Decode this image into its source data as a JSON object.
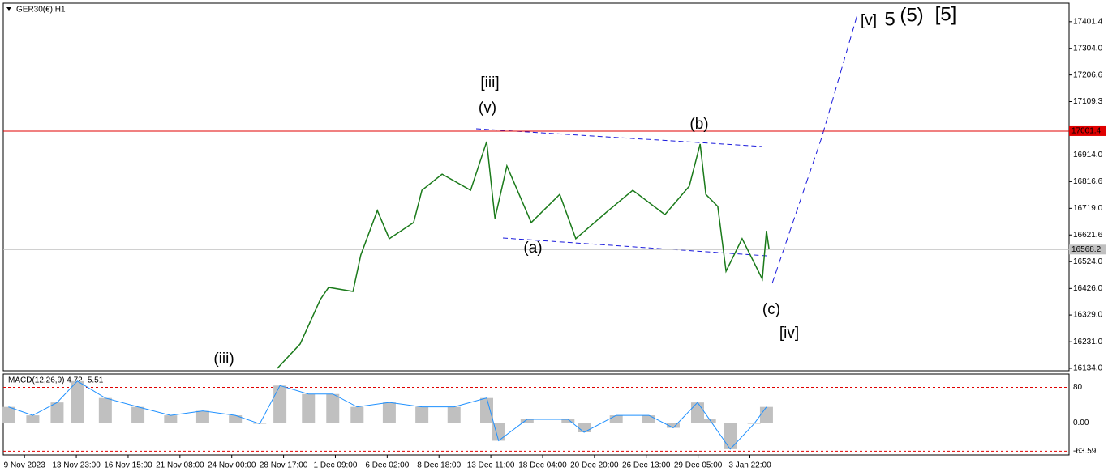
{
  "chart_data": {
    "type": "line",
    "symbol": "GER30(€),H1",
    "indicator": "MACD(12,26,9) 4.72 -5.51",
    "categories": [
      "9 Nov 2023",
      "13 Nov 23:00",
      "16 Nov 15:00",
      "21 Nov 08:00",
      "24 Nov 00:00",
      "28 Nov 17:00",
      "1 Dec 09:00",
      "6 Dec 02:00",
      "8 Dec 18:00",
      "13 Dec 11:00",
      "18 Dec 04:00",
      "20 Dec 20:00",
      "26 Dec 13:00",
      "29 Dec 05:00",
      "3 Jan 22:00"
    ],
    "xlim": [
      -0.41,
      20.16
    ],
    "ylim": [
      16125,
      17469
    ],
    "yticks": [
      {
        "value": 17401.4,
        "label": "17401.4"
      },
      {
        "value": 17304,
        "label": "17304.0"
      },
      {
        "value": 17206.6,
        "label": "17206.6"
      },
      {
        "value": 17109.3,
        "label": "17109.3"
      },
      {
        "value": 16914,
        "label": "16914.0"
      },
      {
        "value": 16816.6,
        "label": "16816.6"
      },
      {
        "value": 16719,
        "label": "16719.0"
      },
      {
        "value": 16621.6,
        "label": "16621.6"
      },
      {
        "value": 16524,
        "label": "16524.0"
      },
      {
        "value": 16426,
        "label": "16426.0"
      },
      {
        "value": 16329,
        "label": "16329.0"
      },
      {
        "value": 16231,
        "label": "16231.0"
      },
      {
        "value": 16134,
        "label": "16134.0"
      }
    ],
    "price_lines": [
      {
        "value": 17001.4,
        "label": "17001.4",
        "color": "#e00000"
      },
      {
        "value": 16568.2,
        "label": "16568.2",
        "color": "#c0c0c0"
      }
    ],
    "series": [
      {
        "name": "GER30",
        "color": "#1a7a1a",
        "x": [
          4.88,
          5.32,
          5.71,
          5.87,
          6.34,
          6.49,
          6.81,
          7.04,
          7.51,
          7.67,
          8.06,
          8.61,
          8.92,
          9.08,
          9.31,
          9.78,
          10.33,
          10.64,
          11.27,
          11.74,
          12.36,
          12.83,
          13.04,
          13.15,
          13.38,
          13.54,
          13.85,
          14.24,
          14.32,
          14.37
        ],
        "values": [
          16134,
          16223,
          16386,
          16430,
          16415,
          16548,
          16711,
          16608,
          16667,
          16785,
          16844,
          16785,
          16963,
          16682,
          16874,
          16667,
          16770,
          16608,
          16711,
          16785,
          16696,
          16800,
          16954,
          16770,
          16726,
          16489,
          16608,
          16460,
          16637,
          16569
        ]
      }
    ],
    "macd": {
      "color": "#1e90ff",
      "fill": "#c0c0c0",
      "ylim": [
        -72,
        110
      ],
      "yticks": [
        80,
        {
          "value": 0,
          "label": "0.00"
        },
        -63.59
      ],
      "x": [
        -0.31,
        0.16,
        0.63,
        1.02,
        1.56,
        2.19,
        2.82,
        3.44,
        4.07,
        4.54,
        4.93,
        5.48,
        5.95,
        6.42,
        7.04,
        7.67,
        8.29,
        8.92,
        9.15,
        9.7,
        10.49,
        10.8,
        11.42,
        12.05,
        12.52,
        12.99,
        13.22,
        13.62,
        14.08,
        14.32
      ],
      "values": [
        36,
        17,
        46,
        94,
        56,
        36,
        17,
        27,
        17,
        -2,
        84,
        65,
        65,
        36,
        46,
        36,
        36,
        56,
        -40,
        8,
        8,
        -21,
        17,
        17,
        -11,
        46,
        8,
        -59,
        -2,
        36
      ]
    },
    "annotations": [
      {
        "text": "[iii]",
        "color": "#1a8a1a"
      },
      {
        "text": "(v)",
        "color": "#1a1adc"
      },
      {
        "text": "(b)",
        "color": "#1a1adc"
      },
      {
        "text": "(a)",
        "color": "#1a1adc"
      },
      {
        "text": "(c)",
        "color": "#1a1adc"
      },
      {
        "text": "[iv]",
        "color": "#1a8a1a"
      },
      {
        "text": "(iii)",
        "color": "#1a1adc"
      },
      {
        "text": "[v]",
        "color": "#1a8a1a"
      },
      {
        "text": "5",
        "color": "#1a1adc"
      },
      {
        "text": "(5)",
        "color": "#e00000"
      },
      {
        "text": "[5]",
        "color": "#000000"
      }
    ]
  }
}
